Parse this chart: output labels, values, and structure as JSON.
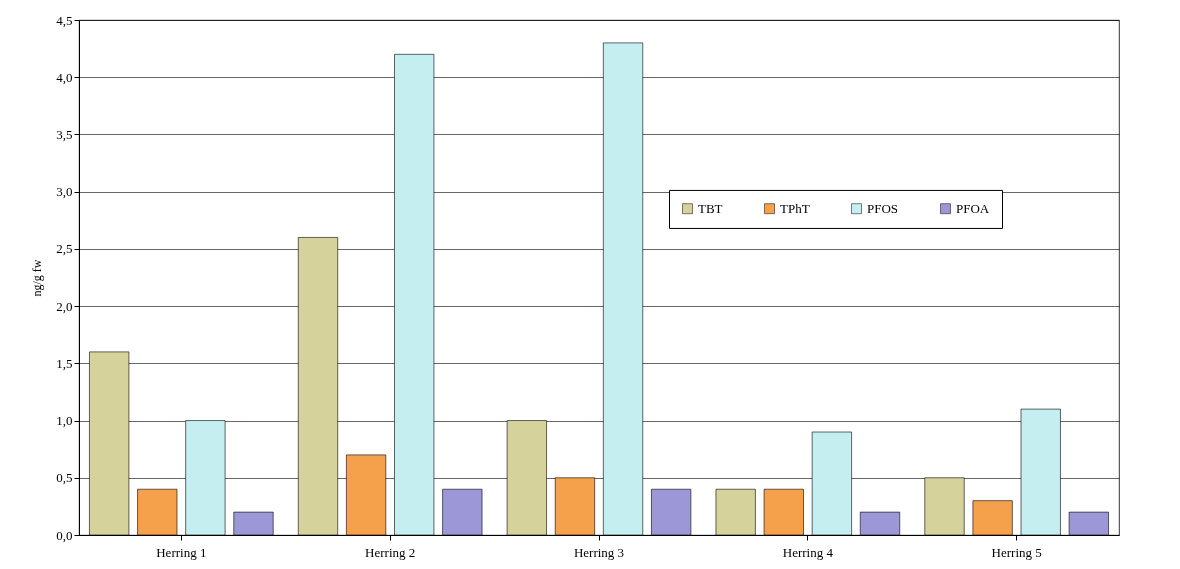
{
  "chart_data": {
    "type": "bar",
    "ylabel": "ng/g fw",
    "categories": [
      "Herring 1",
      "Herring 2",
      "Herring 3",
      "Herring 4",
      "Herring 5"
    ],
    "series": [
      {
        "name": "TBT",
        "color": "#d6d29c",
        "values": [
          1.6,
          2.6,
          1.0,
          0.4,
          0.5
        ]
      },
      {
        "name": "TPhT",
        "color": "#f5a04a",
        "values": [
          0.4,
          0.7,
          0.5,
          0.4,
          0.3
        ]
      },
      {
        "name": "PFOS",
        "color": "#c4eef0",
        "values": [
          1.0,
          4.2,
          4.3,
          0.9,
          1.1
        ]
      },
      {
        "name": "PFOA",
        "color": "#9c98d8",
        "values": [
          0.2,
          0.4,
          0.4,
          0.2,
          0.2
        ]
      }
    ],
    "ylim": [
      0,
      4.5
    ],
    "yticks": [
      {
        "value": 0,
        "label": "0,0"
      },
      {
        "value": 0.5,
        "label": "0,5"
      },
      {
        "value": 1,
        "label": "1,0"
      },
      {
        "value": 1.5,
        "label": "1,5"
      },
      {
        "value": 2,
        "label": "2,0"
      },
      {
        "value": 2.5,
        "label": "2,5"
      },
      {
        "value": 3,
        "label": "3,0"
      },
      {
        "value": 3.5,
        "label": "3,5"
      },
      {
        "value": 4,
        "label": "4,0"
      },
      {
        "value": 4.5,
        "label": "4,5"
      }
    ],
    "grid": "y",
    "legend": "right"
  }
}
